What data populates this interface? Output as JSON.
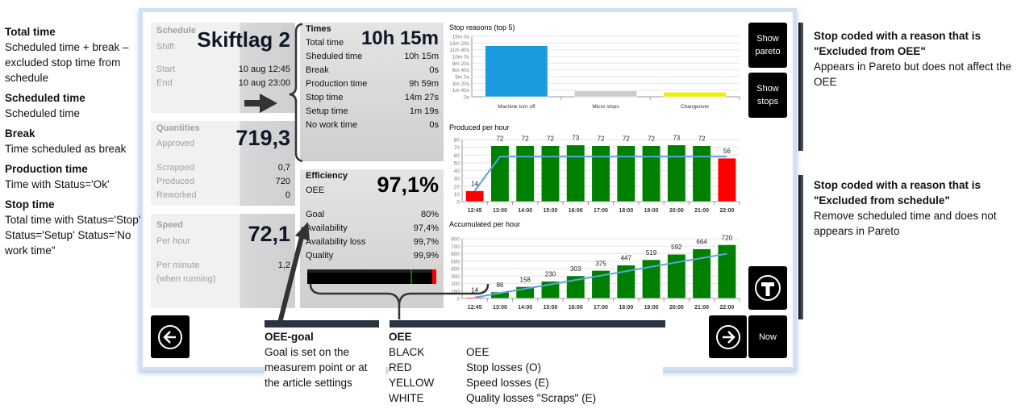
{
  "schedule": {
    "title": "Schedule",
    "shift_label": "Shift",
    "shift_value": "Skiftlag 2",
    "start_label": "Start",
    "start_value": "10 aug 12:45",
    "end_label": "End",
    "end_value": "10 aug 23:00"
  },
  "quantities": {
    "title": "Quantities",
    "approved_label": "Approved",
    "approved_value": "719,3",
    "scrapped_label": "Scrapped",
    "scrapped_value": "0,7",
    "produced_label": "Produced",
    "produced_value": "720",
    "reworked_label": "Reworked",
    "reworked_value": "0"
  },
  "speed": {
    "title": "Speed",
    "per_hour_label": "Per hour",
    "per_hour_value": "72,1",
    "per_minute_label": "Per minute",
    "per_minute_sub": "(when running)",
    "per_minute_value": "1,2"
  },
  "times": {
    "title": "Times",
    "total_label": "Total time",
    "total_value": "10h 15m",
    "rows": [
      {
        "label": "Sheduled time",
        "value": "10h 15m"
      },
      {
        "label": "Break",
        "value": "0s"
      },
      {
        "label": "Production time",
        "value": "9h 59m"
      },
      {
        "label": "Stop time",
        "value": "14m 27s"
      },
      {
        "label": "Setup time",
        "value": "1m 19s"
      },
      {
        "label": "No work time",
        "value": "0s"
      }
    ]
  },
  "efficiency": {
    "title": "Efficiency",
    "oee_label": "OEE",
    "oee_value": "97,1%",
    "rows": [
      {
        "label": "Goal",
        "value": "80%"
      },
      {
        "label": "Availability",
        "value": "97,4%"
      },
      {
        "label": "Availability loss",
        "value": "99,7%"
      },
      {
        "label": "Quality",
        "value": "99,9%"
      }
    ],
    "bar": {
      "oee": 97.1,
      "goal": 80,
      "colors": {
        "oee": "#000000",
        "stop": "#ff0000",
        "goal": "#008000"
      }
    }
  },
  "buttons": {
    "show_pareto": "Show pareto",
    "show_stops": "Show stops",
    "now": "Now",
    "t_icon": "t-circle-icon",
    "prev_icon": "arrow-left-circle-icon",
    "next_icon": "arrow-right-circle-icon"
  },
  "annotations": {
    "left": [
      {
        "title": "Total time",
        "text": "Scheduled time + break – excluded stop time from schedule"
      },
      {
        "title": "Scheduled time",
        "text": "Scheduled time"
      },
      {
        "title": "Break",
        "text": "Time scheduled as break"
      },
      {
        "title": "Production time",
        "text": "Time with Status='Ok'"
      },
      {
        "title": "Stop time",
        "text": "Total time with Status='Stop' Status='Setup' Status='No work time\""
      }
    ],
    "right": [
      {
        "title": "Stop coded with a reason that is \"Excluded from OEE\"",
        "text": "Appears in Pareto but does not affect the OEE"
      },
      {
        "title": "Stop coded with a reason that is \"Excluded from schedule\"",
        "text": "Remove scheduled time and does not appears in Pareto"
      }
    ],
    "oee_goal": {
      "title": "OEE-goal",
      "text": "Goal is set on the measurem point or at the article settings"
    },
    "oee_legend": {
      "title": "OEE",
      "rows": [
        {
          "color": "BLACK",
          "meaning": "OEE"
        },
        {
          "color": "RED",
          "meaning": "Stop losses (O)"
        },
        {
          "color": "YELLOW",
          "meaning": "Speed losses (E)"
        },
        {
          "color": "WHITE",
          "meaning": "Quality losses \"Scraps\" (E)"
        }
      ]
    }
  },
  "chart_data": [
    {
      "type": "bar",
      "title": "Stop reasons (top 5)",
      "categories": [
        "Machine turn off",
        "Micro stops",
        "Changeover"
      ],
      "values_seconds": [
        760,
        88,
        68
      ],
      "colors": [
        "#1a9be0",
        "#cccccc",
        "#eeee00"
      ],
      "ylim": [
        0,
        900
      ],
      "yticks": [
        "0s",
        "1m 40s",
        "3m 20s",
        "5m 0s",
        "6m 40s",
        "8m 20s",
        "10m 0s",
        "11m 40s",
        "13m 20s",
        "15m 0s"
      ],
      "grid": true
    },
    {
      "type": "bar",
      "title": "Produced per hour",
      "categories": [
        "12:45",
        "13:00",
        "14:00",
        "15:00",
        "16:00",
        "17:00",
        "18:00",
        "19:00",
        "20:00",
        "21:00",
        "22:00"
      ],
      "values": [
        14,
        72,
        72,
        72,
        73,
        72,
        72,
        72,
        73,
        72,
        56
      ],
      "colors": [
        "#ff0000",
        "#008000",
        "#008000",
        "#008000",
        "#008000",
        "#008000",
        "#008000",
        "#008000",
        "#008000",
        "#008000",
        "#ff0000"
      ],
      "target": [
        14,
        58,
        58,
        58,
        58,
        58,
        58,
        58,
        58,
        58,
        58
      ],
      "target_color": "#5aa5dc",
      "ylim": [
        0,
        80
      ],
      "ystep": 10,
      "grid": true
    },
    {
      "type": "bar",
      "title": "Accumulated per hour",
      "categories": [
        "12:45",
        "13:00",
        "14:00",
        "15:00",
        "16:00",
        "17:00",
        "18:00",
        "19:00",
        "20:00",
        "21:00",
        "22:00"
      ],
      "values": [
        14,
        86,
        158,
        230,
        303,
        375,
        447,
        519,
        592,
        664,
        720
      ],
      "colors": [
        "#ff0000",
        "#008000",
        "#008000",
        "#008000",
        "#008000",
        "#008000",
        "#008000",
        "#008000",
        "#008000",
        "#008000",
        "#008000"
      ],
      "target": [
        14,
        72,
        130,
        188,
        247,
        306,
        365,
        424,
        483,
        541,
        600
      ],
      "target_color": "#5aa5dc",
      "ylim": [
        0,
        800
      ],
      "ystep": 100,
      "grid": true
    }
  ]
}
